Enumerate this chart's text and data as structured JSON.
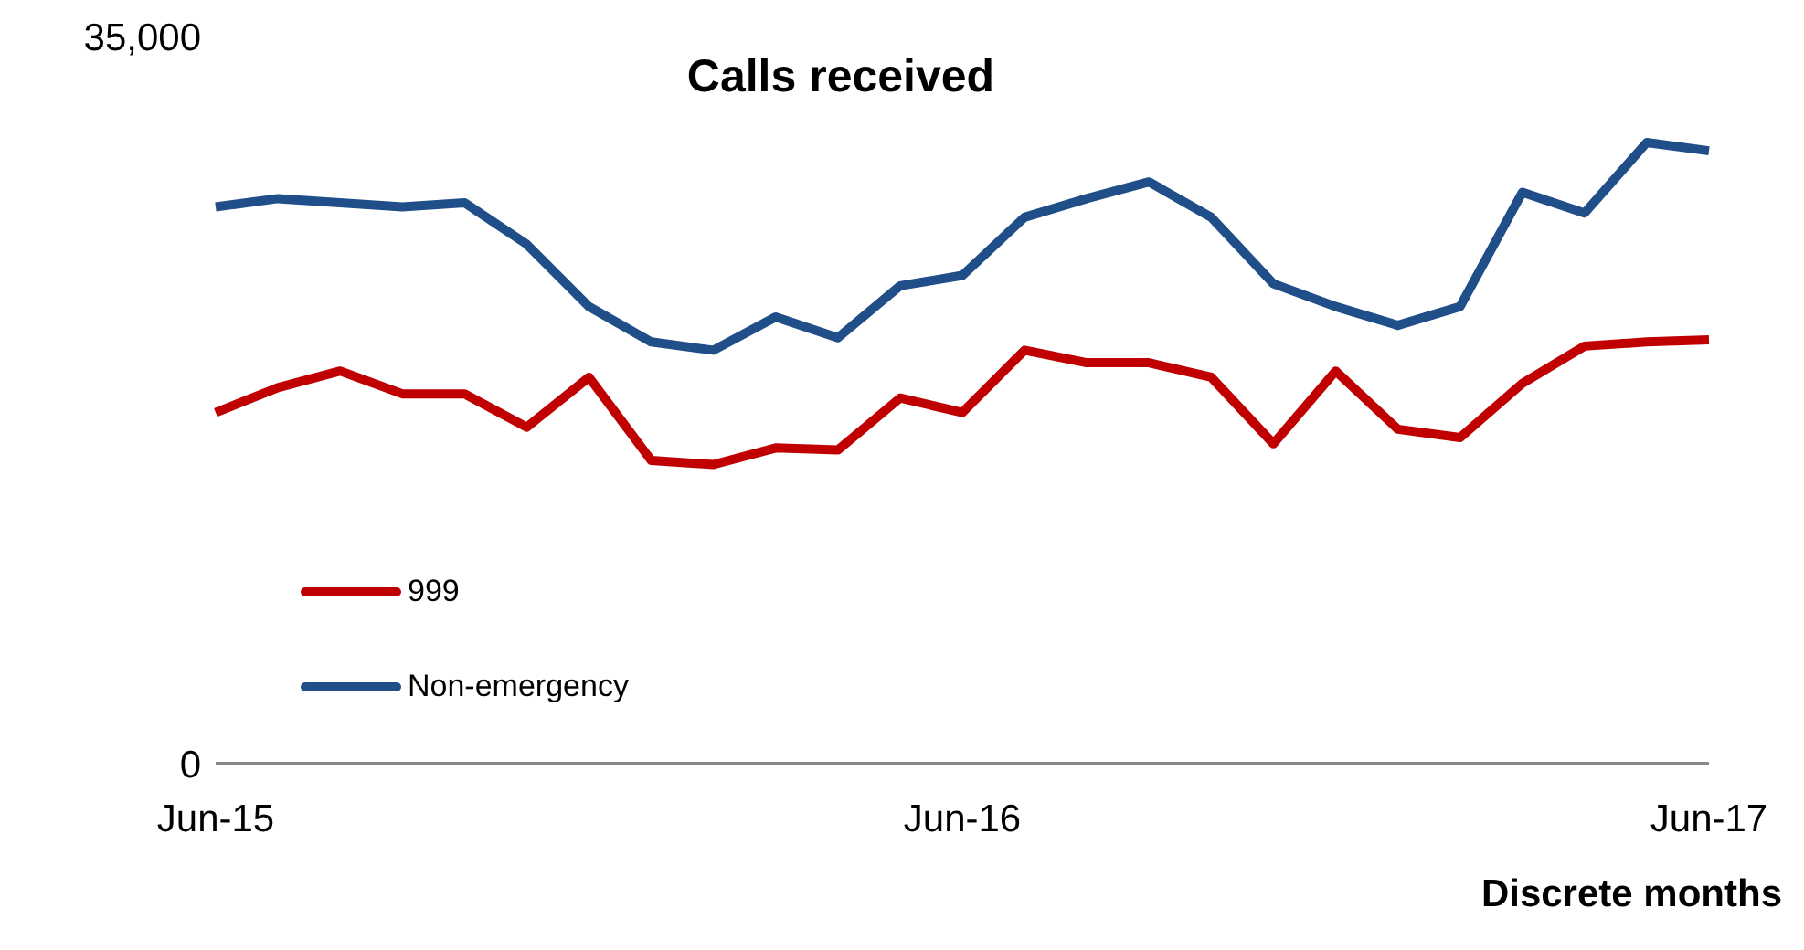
{
  "chart_data": {
    "type": "line",
    "title": "Calls received",
    "xlabel": "Discrete months",
    "categories": [
      "Jun-15",
      null,
      null,
      null,
      null,
      null,
      null,
      null,
      null,
      null,
      null,
      null,
      "Jun-16",
      null,
      null,
      null,
      null,
      null,
      null,
      null,
      null,
      null,
      null,
      null,
      "Jun-17"
    ],
    "series": [
      {
        "name": "999",
        "color": "#c00000",
        "values": [
          16900,
          18100,
          18900,
          17800,
          17800,
          16200,
          18600,
          14600,
          14400,
          15200,
          15100,
          17600,
          16900,
          19900,
          19300,
          19300,
          18600,
          15400,
          18900,
          16100,
          15700,
          18300,
          20100,
          20300,
          20400
        ]
      },
      {
        "name": "Non-emergency",
        "color": "#1f4e89",
        "values": [
          26800,
          27200,
          27000,
          26800,
          27000,
          25000,
          22000,
          20300,
          19900,
          21500,
          20500,
          23000,
          23500,
          26300,
          27200,
          28000,
          26300,
          23100,
          22000,
          21100,
          22000,
          27500,
          26500,
          29900,
          29500
        ]
      }
    ],
    "ylim": [
      0,
      35000
    ],
    "yticks": [
      {
        "value": 0,
        "label": "0"
      },
      {
        "value": 35000,
        "label": "35,000"
      }
    ],
    "legend": "bottom left",
    "line_style": "solid"
  }
}
